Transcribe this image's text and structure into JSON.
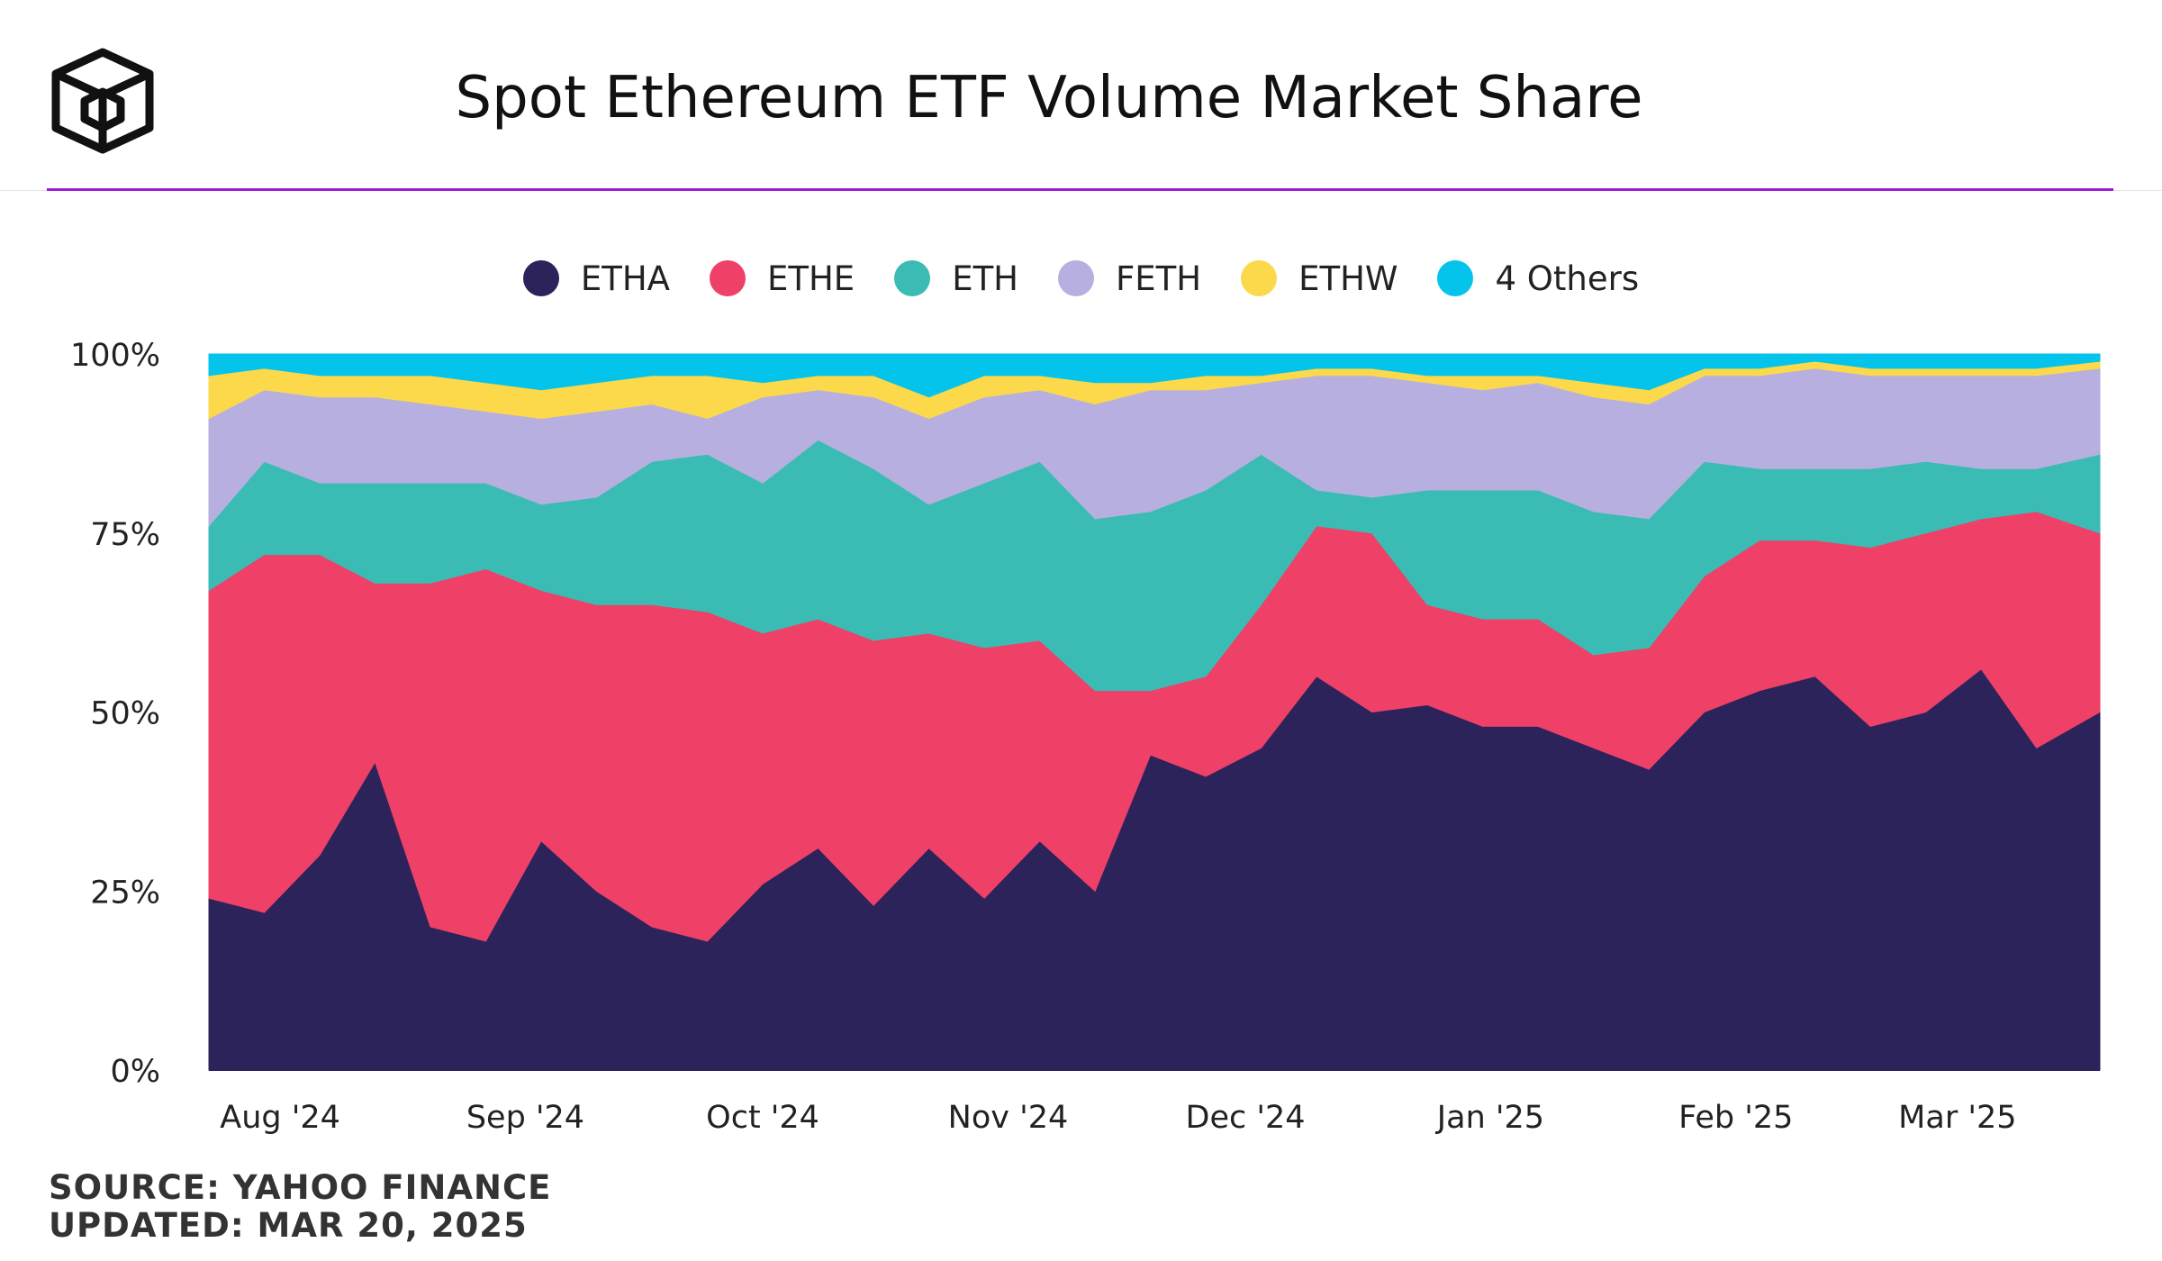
{
  "title": "Spot Ethereum ETF Volume Market Share",
  "colors": {
    "accent_rule": "#9b1fd0"
  },
  "footer": {
    "source": "SOURCE: YAHOO FINANCE",
    "updated": "UPDATED: MAR 20, 2025"
  },
  "chart_data": {
    "type": "area",
    "stacked": true,
    "normalized_percent": true,
    "title": "Spot Ethereum ETF Volume Market Share",
    "xlabel": "",
    "ylabel": "",
    "ylim": [
      0,
      100
    ],
    "y_ticks": [
      0,
      25,
      50,
      75,
      100
    ],
    "y_tick_labels": [
      "0%",
      "25%",
      "50%",
      "75%",
      "100%"
    ],
    "x_ticks": [
      "2024-08-01",
      "2024-09-01",
      "2024-10-01",
      "2024-11-01",
      "2024-12-01",
      "2025-01-01",
      "2025-02-01",
      "2025-03-01"
    ],
    "x_tick_labels": [
      "Aug '24",
      "Sep '24",
      "Oct '24",
      "Nov '24",
      "Dec '24",
      "Jan '25",
      "Feb '25",
      "Mar '25"
    ],
    "x_range": [
      "2024-07-23",
      "2025-03-19"
    ],
    "grid": false,
    "legend_position": "top-center",
    "x": [
      "2024-07-23",
      "2024-07-30",
      "2024-08-06",
      "2024-08-13",
      "2024-08-20",
      "2024-08-27",
      "2024-09-03",
      "2024-09-10",
      "2024-09-17",
      "2024-09-24",
      "2024-10-01",
      "2024-10-08",
      "2024-10-15",
      "2024-10-22",
      "2024-10-29",
      "2024-11-05",
      "2024-11-12",
      "2024-11-19",
      "2024-11-26",
      "2024-12-03",
      "2024-12-10",
      "2024-12-17",
      "2024-12-24",
      "2024-12-31",
      "2025-01-07",
      "2025-01-14",
      "2025-01-21",
      "2025-01-28",
      "2025-02-04",
      "2025-02-11",
      "2025-02-18",
      "2025-02-25",
      "2025-03-04",
      "2025-03-11",
      "2025-03-19"
    ],
    "series": [
      {
        "name": "ETHA",
        "color": "#2b235a",
        "values": [
          24,
          22,
          30,
          43,
          20,
          18,
          32,
          25,
          20,
          18,
          26,
          31,
          23,
          31,
          24,
          32,
          25,
          44,
          41,
          45,
          55,
          50,
          51,
          48,
          48,
          45,
          42,
          50,
          53,
          55,
          48,
          50,
          56,
          45,
          50
        ]
      },
      {
        "name": "ETHE",
        "color": "#ef4068",
        "values": [
          43,
          50,
          42,
          25,
          48,
          52,
          35,
          40,
          45,
          46,
          35,
          32,
          37,
          30,
          35,
          28,
          28,
          9,
          14,
          20,
          21,
          25,
          14,
          15,
          15,
          13,
          17,
          19,
          21,
          19,
          25,
          25,
          21,
          33,
          25
        ]
      },
      {
        "name": "ETH",
        "color": "#3abcb4",
        "values": [
          9,
          13,
          10,
          14,
          14,
          12,
          12,
          15,
          20,
          22,
          21,
          25,
          24,
          18,
          23,
          25,
          24,
          25,
          26,
          21,
          5,
          5,
          16,
          18,
          18,
          20,
          18,
          16,
          10,
          10,
          11,
          10,
          7,
          6,
          11
        ]
      },
      {
        "name": "FETH",
        "color": "#b7afe0",
        "values": [
          15,
          10,
          12,
          12,
          11,
          10,
          12,
          12,
          8,
          5,
          12,
          7,
          10,
          12,
          12,
          10,
          16,
          17,
          14,
          10,
          16,
          17,
          15,
          14,
          15,
          16,
          16,
          12,
          13,
          14,
          13,
          12,
          13,
          13,
          12
        ]
      },
      {
        "name": "ETHW",
        "color": "#fcd94a",
        "values": [
          6,
          3,
          3,
          3,
          4,
          4,
          4,
          4,
          4,
          6,
          2,
          2,
          3,
          3,
          3,
          2,
          3,
          1,
          2,
          1,
          1,
          1,
          1,
          2,
          1,
          2,
          2,
          1,
          1,
          1,
          1,
          1,
          1,
          1,
          1
        ]
      },
      {
        "name": "4 Others",
        "color": "#04c4ec",
        "values": [
          3,
          2,
          3,
          3,
          3,
          4,
          5,
          4,
          3,
          3,
          4,
          3,
          3,
          6,
          3,
          3,
          4,
          4,
          3,
          3,
          2,
          2,
          3,
          3,
          3,
          4,
          5,
          2,
          2,
          1,
          2,
          2,
          2,
          2,
          1
        ]
      }
    ]
  }
}
